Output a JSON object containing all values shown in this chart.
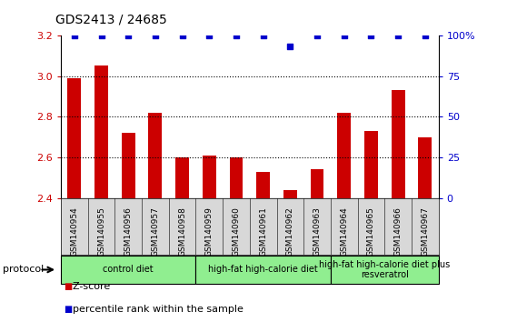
{
  "title": "GDS2413 / 24685",
  "samples": [
    "GSM140954",
    "GSM140955",
    "GSM140956",
    "GSM140957",
    "GSM140958",
    "GSM140959",
    "GSM140960",
    "GSM140961",
    "GSM140962",
    "GSM140963",
    "GSM140964",
    "GSM140965",
    "GSM140966",
    "GSM140967"
  ],
  "z_scores": [
    2.99,
    3.05,
    2.72,
    2.82,
    2.6,
    2.61,
    2.6,
    2.53,
    2.44,
    2.54,
    2.82,
    2.73,
    2.93,
    2.7
  ],
  "percentile_ranks": [
    100,
    100,
    100,
    100,
    100,
    100,
    100,
    100,
    93,
    100,
    100,
    100,
    100,
    100
  ],
  "bar_color": "#cc0000",
  "percentile_color": "#0000cc",
  "ylim_left": [
    2.4,
    3.2
  ],
  "yticks_left": [
    2.4,
    2.6,
    2.8,
    3.0,
    3.2
  ],
  "yticks_right": [
    0,
    25,
    50,
    75,
    100
  ],
  "group_boundaries": [
    0,
    5,
    10,
    14
  ],
  "group_labels": [
    "control diet",
    "high-fat high-calorie diet",
    "high-fat high-calorie diet plus\nresveratrol"
  ],
  "group_color": "#90ee90",
  "protocol_label": "protocol",
  "legend_zscore_label": "Z-score",
  "legend_percentile_label": "percentile rank within the sample",
  "sample_bg_color": "#d8d8d8",
  "chart_bg_color": "#ffffff"
}
